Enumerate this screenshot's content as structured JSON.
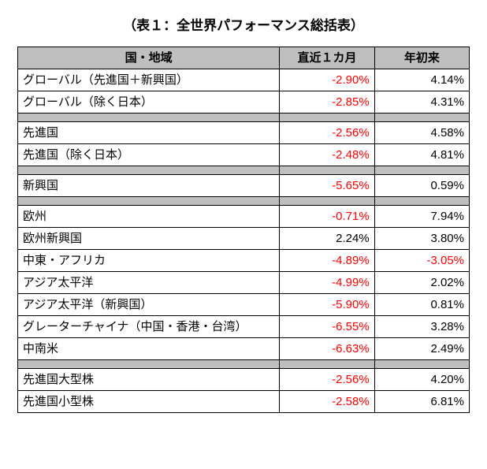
{
  "title": "（表１：全世界パフォーマンス総括表）",
  "columns": {
    "region": "国・地域",
    "m1": "直近１カ月",
    "ytd": "年初来"
  },
  "groups": [
    [
      {
        "region": "グローバル（先進国＋新興国）",
        "m1": "-2.90%",
        "m1_neg": true,
        "ytd": "4.14%",
        "ytd_neg": false
      },
      {
        "region": "グローバル（除く日本）",
        "m1": "-2.85%",
        "m1_neg": true,
        "ytd": "4.31%",
        "ytd_neg": false
      }
    ],
    [
      {
        "region": "先進国",
        "m1": "-2.56%",
        "m1_neg": true,
        "ytd": "4.58%",
        "ytd_neg": false
      },
      {
        "region": "先進国（除く日本）",
        "m1": "-2.48%",
        "m1_neg": true,
        "ytd": "4.81%",
        "ytd_neg": false
      }
    ],
    [
      {
        "region": "新興国",
        "m1": "-5.65%",
        "m1_neg": true,
        "ytd": "0.59%",
        "ytd_neg": false
      }
    ],
    [
      {
        "region": "欧州",
        "m1": "-0.71%",
        "m1_neg": true,
        "ytd": "7.94%",
        "ytd_neg": false
      },
      {
        "region": "欧州新興国",
        "m1": "2.24%",
        "m1_neg": false,
        "ytd": "3.80%",
        "ytd_neg": false
      },
      {
        "region": "中東・アフリカ",
        "m1": "-4.89%",
        "m1_neg": true,
        "ytd": "-3.05%",
        "ytd_neg": true
      },
      {
        "region": "アジア太平洋",
        "m1": "-4.99%",
        "m1_neg": true,
        "ytd": "2.02%",
        "ytd_neg": false
      },
      {
        "region": "アジア太平洋（新興国）",
        "m1": "-5.90%",
        "m1_neg": true,
        "ytd": "0.81%",
        "ytd_neg": false
      },
      {
        "region": "グレーターチャイナ（中国・香港・台湾）",
        "m1": "-6.55%",
        "m1_neg": true,
        "ytd": "3.28%",
        "ytd_neg": false
      },
      {
        "region": "中南米",
        "m1": "-6.63%",
        "m1_neg": true,
        "ytd": "2.49%",
        "ytd_neg": false
      }
    ],
    [
      {
        "region": "先進国大型株",
        "m1": "-2.56%",
        "m1_neg": true,
        "ytd": "4.20%",
        "ytd_neg": false
      },
      {
        "region": "先進国小型株",
        "m1": "-2.58%",
        "m1_neg": true,
        "ytd": "6.81%",
        "ytd_neg": false
      }
    ]
  ],
  "style": {
    "header_bg": "#bfbfbf",
    "spacer_bg": "#bfbfbf",
    "border_color": "#000000",
    "neg_color": "#ff0000",
    "text_color": "#000000",
    "font_size_body": 15,
    "font_size_title": 17
  }
}
